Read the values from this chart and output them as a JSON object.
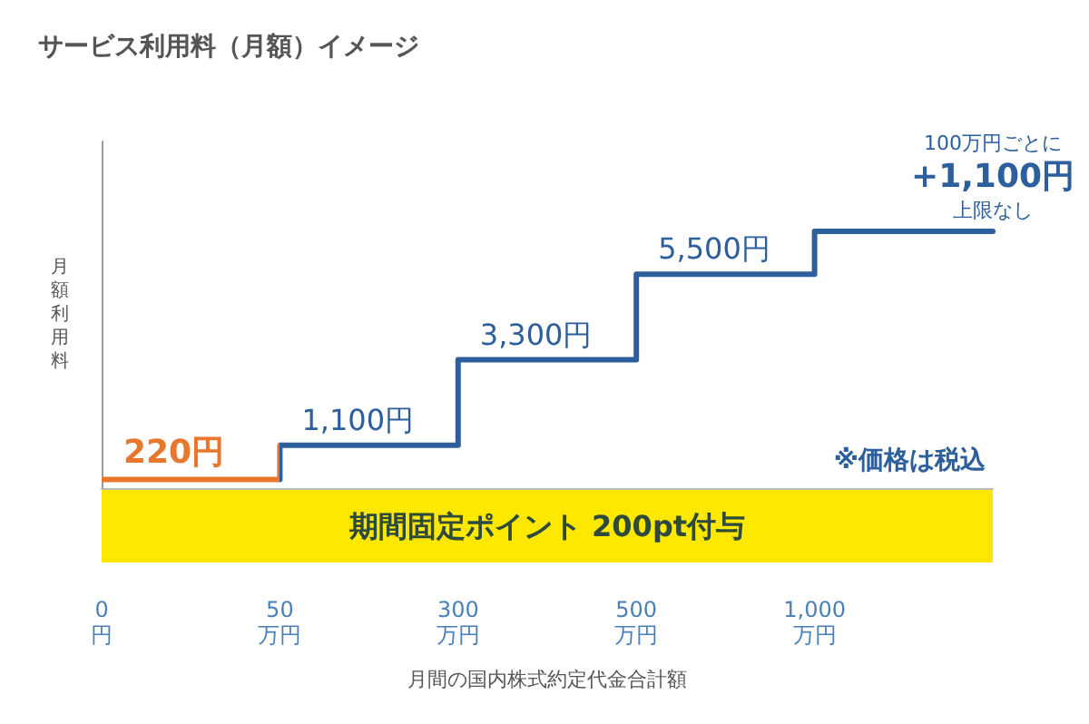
{
  "chart_data": {
    "type": "step",
    "title": "サービス利用料（月額）イメージ",
    "xlabel": "月間の国内株式約定代金合計額",
    "ylabel": "月額利用料",
    "marker": "none",
    "line_style": "solid",
    "tick_labels": "x",
    "categories": [
      "0円",
      "50万円",
      "300万円",
      "500万円",
      "1,000万円",
      null
    ],
    "series": [
      {
        "colors": [
          "#e8772e",
          "#2d5f9c",
          "#2d5f9c",
          "#2d5f9c",
          "#2d5f9c",
          "#2d5f9c"
        ],
        "values": [
          220,
          1100,
          3300,
          5500,
          6600,
          6600
        ],
        "value_labels": [
          "220円",
          "1,100円",
          "3,300円",
          "5,500円",
          null,
          null
        ]
      }
    ],
    "annotations": [
      "期間固定ポイント 200pt付与",
      "※価格は税込",
      "100万円ごとに",
      "+1,100円",
      "上限なし"
    ]
  }
}
